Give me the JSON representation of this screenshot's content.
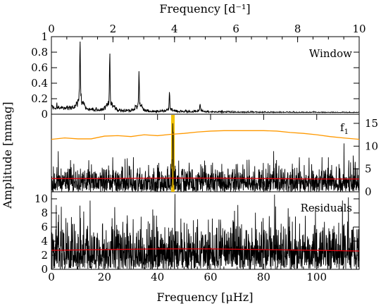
{
  "chart_data": [
    {
      "panel": "window",
      "type": "line",
      "label": "Window",
      "ylim": [
        0,
        1.0
      ],
      "yticks": [
        "0",
        "0.2",
        "0.4",
        "0.6",
        "0.8",
        "1"
      ],
      "top_axis": {
        "label": "Frequency [d⁻¹]",
        "xlim": [
          0,
          10
        ],
        "ticks": [
          "0",
          "2",
          "4",
          "6",
          "8",
          "10"
        ]
      },
      "peaks": [
        {
          "x": 10.8,
          "y": 0.79
        },
        {
          "x": 22.0,
          "y": 0.6
        },
        {
          "x": 33.0,
          "y": 0.43
        },
        {
          "x": 44.5,
          "y": 0.21
        },
        {
          "x": 56.0,
          "y": 0.09
        }
      ]
    },
    {
      "panel": "f1",
      "type": "line",
      "label": "f",
      "label_sub": "1",
      "y_right_ticks": [
        "0",
        "5",
        "10",
        "15"
      ],
      "highlight_x": 45.8,
      "highlight_color": "#f2c200",
      "noise_color": "#e8000b",
      "sn_color": "#ff9900",
      "series": [
        {
          "role": "noise level",
          "x": [
            0,
            20,
            40,
            60,
            80,
            100,
            116
          ],
          "y": [
            2.9,
            2.9,
            3.0,
            3.0,
            2.9,
            2.8,
            2.8
          ]
        },
        {
          "role": "S/N",
          "x": [
            0,
            5,
            10,
            15,
            20,
            25,
            30,
            35,
            40,
            45,
            50,
            55,
            60,
            65,
            70,
            75,
            80,
            85,
            90,
            95,
            100,
            105,
            110,
            116
          ],
          "y": [
            11.5,
            11.8,
            11.6,
            11.6,
            12.2,
            12.3,
            12.1,
            12.5,
            12.3,
            12.6,
            12.8,
            13.1,
            13.3,
            13.4,
            13.4,
            13.4,
            13.4,
            13.3,
            13.0,
            12.8,
            12.5,
            12.1,
            11.8,
            11.5
          ]
        }
      ]
    },
    {
      "panel": "residuals",
      "type": "line",
      "label": "Residuals",
      "ylim": [
        0,
        11
      ],
      "yticks": [
        "0",
        "2",
        "4",
        "6",
        "8",
        "10"
      ],
      "xlim": [
        0,
        116
      ],
      "xticks": [
        "0",
        "20",
        "40",
        "60",
        "80",
        "100"
      ],
      "xlabel": "Frequency [μHz]",
      "series": [
        {
          "role": "noise level",
          "x": [
            0,
            20,
            40,
            60,
            80,
            100,
            116
          ],
          "y": [
            2.7,
            2.8,
            2.9,
            2.9,
            2.8,
            2.7,
            2.6
          ]
        }
      ]
    }
  ],
  "ylabel": "Amplitude [mmag]"
}
